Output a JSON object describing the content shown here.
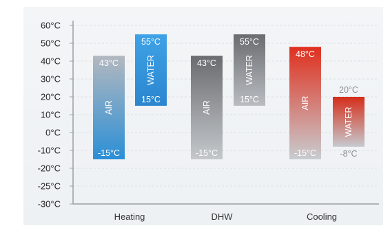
{
  "chart_data": {
    "type": "bar",
    "subtype": "floating-range",
    "categories": [
      "Heating",
      "DHW",
      "Cooling"
    ],
    "ylim": [
      -30,
      60
    ],
    "y_ticks": [
      60,
      50,
      40,
      30,
      20,
      10,
      0,
      -10,
      -20,
      -25,
      -30
    ],
    "y_tick_labels": [
      "60°C",
      "50°C",
      "40°C",
      "30°C",
      "20°C",
      "10°C",
      "0°C",
      "-10°C",
      "-20°C",
      "-25°C",
      "-30°C"
    ],
    "grid": true,
    "bars": [
      {
        "category": "Heating",
        "name": "AIR",
        "low": -15,
        "high": 43,
        "low_label": "-15°C",
        "high_label": "43°C",
        "colors": [
          "#b3b8bf",
          "#2b8fd6"
        ],
        "label_color": "#ffffff"
      },
      {
        "category": "Heating",
        "name": "WATER",
        "low": 15,
        "high": 55,
        "low_label": "15°C",
        "high_label": "55°C",
        "colors": [
          "#3fa2e6",
          "#2b86cf"
        ],
        "label_color": "#ffffff"
      },
      {
        "category": "DHW",
        "name": "AIR",
        "low": -15,
        "high": 43,
        "low_label": "-15°C",
        "high_label": "43°C",
        "colors": [
          "#6a6c6f",
          "#c4c8cc"
        ],
        "label_color": "#ffffff"
      },
      {
        "category": "DHW",
        "name": "WATER",
        "low": 15,
        "high": 55,
        "low_label": "15°C",
        "high_label": "55°C",
        "colors": [
          "#6a6c6f",
          "#b9bdc2"
        ],
        "label_color": "#ffffff"
      },
      {
        "category": "Cooling",
        "name": "AIR",
        "low": -15,
        "high": 48,
        "low_label": "-15°C",
        "high_label": "48°C",
        "colors": [
          "#e0301e",
          "#c8ccd0"
        ],
        "label_color": "#ffffff"
      },
      {
        "category": "Cooling",
        "name": "WATER",
        "low": -8,
        "high": 20,
        "low_label": "-8°C",
        "high_label": "20°C",
        "colors": [
          "#d52d1a",
          "#c6cacf"
        ],
        "label_color": "#ffffff",
        "outside_labels": true,
        "outside_label_color": "#8a8e93"
      }
    ],
    "colors": {
      "axis": "#9aa0a6",
      "grid": "#d6dade",
      "tick_text": "#222222",
      "category_text": "#333333"
    }
  }
}
